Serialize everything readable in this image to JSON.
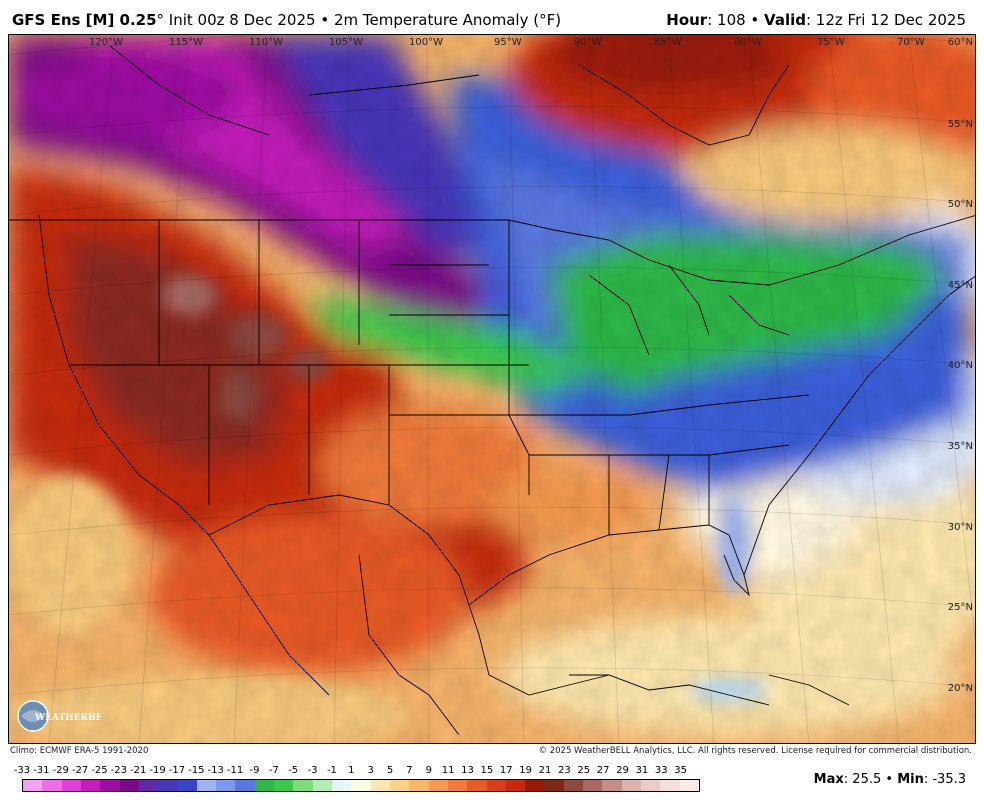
{
  "header": {
    "model": "GFS Ens [M] 0.25",
    "degree": "°",
    "init": " Init 00z 8 Dec 2025",
    "bullet": " • ",
    "field": "2m Temperature Anomaly (",
    "unit": "°F",
    "field_end": ")",
    "hour_label": "Hour",
    "hour_value": ": 108",
    "valid_label": "Valid",
    "valid_value": ": 12z Fri 12 Dec 2025"
  },
  "map": {
    "longitude_labels": [
      "120°W",
      "115°W",
      "110°W",
      "105°W",
      "100°W",
      "95°W",
      "90°W",
      "85°W",
      "80°W",
      "75°W",
      "70°W"
    ],
    "latitude_labels": [
      "60°N",
      "55°N",
      "50°N",
      "45°N",
      "40°N",
      "35°N",
      "30°N",
      "25°N",
      "20°N"
    ],
    "colors": {
      "strong_cold": "#8b00a8",
      "cold": "#3b5fd9",
      "cool": "#2fb84a",
      "near_normal": "#eef4fb",
      "mild": "#f7c97e",
      "warm": "#f07a3a",
      "very_warm": "#c42a10",
      "extreme_warm": "#8a2a20",
      "ocean_warm": "#f5b36b"
    }
  },
  "logo": {
    "brand_text": "WEATHERBELL"
  },
  "footer": {
    "climo": "Climo: ECMWF ERA-5 1991-2020",
    "copyright": "© 2025 WeatherBELL Analytics, LLC. All rights reserved. License required for commercial distribution."
  },
  "colorbar": {
    "tick_labels": [
      "-33",
      "-31",
      "-29",
      "-27",
      "-25",
      "-23",
      "-21",
      "-19",
      "-17",
      "-15",
      "-13",
      "-11",
      "-9",
      "-7",
      "-5",
      "-3",
      "-1",
      "1",
      "3",
      "5",
      "7",
      "9",
      "11",
      "13",
      "15",
      "17",
      "19",
      "21",
      "23",
      "25",
      "27",
      "29",
      "31",
      "33",
      "35"
    ],
    "swatch_colors": [
      "#f6a0f2",
      "#ee6ee7",
      "#e040d8",
      "#c21fb9",
      "#9b0fa0",
      "#7a0a86",
      "#5e2aa8",
      "#4736b8",
      "#3a44c6",
      "#9fb4f0",
      "#7c98ea",
      "#5a78e0",
      "#2fb84a",
      "#38c94c",
      "#7ddc7a",
      "#b4ecb1",
      "#e4f6f5",
      "#fffbe3",
      "#fde7ae",
      "#fbd48a",
      "#f7b86a",
      "#f49a50",
      "#f07a3a",
      "#e85a28",
      "#d8401a",
      "#c42a10",
      "#9a1a0a",
      "#7d2716",
      "#8c4a3f",
      "#a66a63",
      "#c38e8a",
      "#dbb1ad",
      "#ecccc9",
      "#f5dedb",
      "#fae9e7"
    ]
  },
  "stats": {
    "max_label": "Max",
    "max_value": ": 25.5",
    "min_label": "Min",
    "min_value": ": -35.3",
    "separator": " • "
  }
}
